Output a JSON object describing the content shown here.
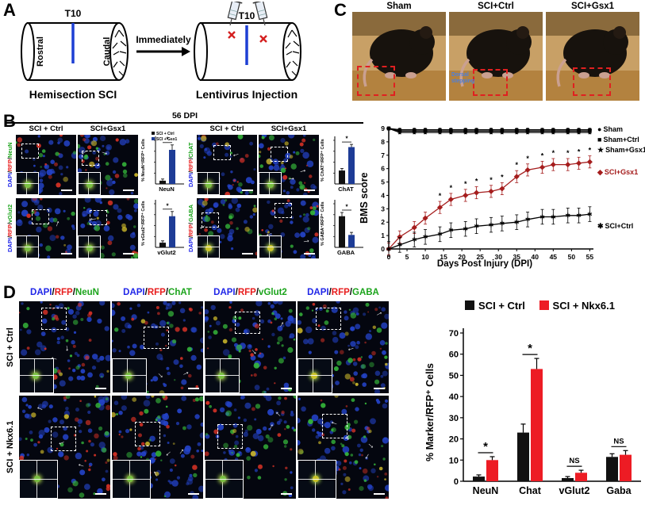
{
  "colors": {
    "dapi_blue": "#2026e8",
    "rfp_red": "#e81c1c",
    "marker_green": "#1ca41c",
    "sci_gsx1_line_red": "#a51d1d",
    "nkx_bar_red": "#ed1c24",
    "gsx1_bar_blue": "#1e3c96"
  },
  "panel_a": {
    "label": "A",
    "t10_left": "T10",
    "t10_right": "T10",
    "rostral": "Rostral",
    "caudal": "Caudal",
    "caption_left": "Hemisection SCI",
    "arrow_label": "Immediately",
    "caption_right": "Lentivirus Injection"
  },
  "panel_c": {
    "label": "C",
    "photo_titles": [
      "Sham",
      "SCI+Ctrl",
      "SCI+Gsx1"
    ],
    "dorsal_note": "Dorsal stepping"
  },
  "panel_b": {
    "label": "B",
    "dpi_header": "56 DPI",
    "sep": "/",
    "col_headers": [
      "SCI + Ctrl",
      "SCI+Gsx1",
      "SCI + Ctrl",
      "SCI+Gsx1"
    ],
    "stains": [
      {
        "dapi": "DAPI",
        "rfp": "RFP",
        "marker": "NeuN"
      },
      {
        "dapi": "DAPI",
        "rfp": "RFP",
        "marker": "ChAT"
      },
      {
        "dapi": "DAPI",
        "rfp": "RFP",
        "marker": "vGlut2"
      },
      {
        "dapi": "DAPI",
        "rfp": "RFP",
        "marker": "GABA"
      }
    ]
  },
  "panel_d": {
    "label": "D",
    "sep": "/",
    "col_headers": [
      {
        "dapi": "DAPI",
        "rfp": "RFP",
        "marker": "NeuN"
      },
      {
        "dapi": "DAPI",
        "rfp": "RFP",
        "marker": "ChAT"
      },
      {
        "dapi": "DAPI",
        "rfp": "RFP",
        "marker": "vGlut2"
      },
      {
        "dapi": "DAPI",
        "rfp": "RFP",
        "marker": "GABA"
      }
    ],
    "row_labels": [
      "SCI + Ctrl",
      "SCI + Nkx6.1"
    ]
  },
  "chart_data": [
    {
      "id": "bms",
      "type": "line",
      "xlabel": "Days Post Injury (DPI)",
      "ylabel": "BMS score",
      "xlim": [
        0,
        56
      ],
      "ylim": [
        0,
        9
      ],
      "xticks": [
        0,
        5,
        10,
        15,
        20,
        25,
        30,
        35,
        40,
        45,
        50,
        55
      ],
      "yticks": [
        0,
        1,
        2,
        3,
        4,
        5,
        6,
        7,
        8,
        9
      ],
      "x": [
        0,
        3,
        7,
        10,
        14,
        17,
        21,
        24,
        28,
        31,
        35,
        38,
        42,
        45,
        49,
        52,
        55
      ],
      "series": [
        {
          "name": "Sham",
          "glyph": "●",
          "marker": "circle",
          "color": "#000000",
          "err": 0.1,
          "values": [
            9,
            8.9,
            8.9,
            8.9,
            8.9,
            8.9,
            8.9,
            8.9,
            8.9,
            8.9,
            8.9,
            8.9,
            8.9,
            8.9,
            8.9,
            8.9,
            8.9
          ]
        },
        {
          "name": "Sham+Ctrl",
          "glyph": "■",
          "marker": "square",
          "color": "#000000",
          "err": 0.1,
          "values": [
            9,
            8.8,
            8.8,
            8.8,
            8.8,
            8.8,
            8.8,
            8.8,
            8.8,
            8.8,
            8.8,
            8.8,
            8.8,
            8.8,
            8.8,
            8.8,
            8.8
          ]
        },
        {
          "name": "Sham+Gsx1",
          "glyph": "★",
          "marker": "star",
          "color": "#000000",
          "err": 0.1,
          "values": [
            9,
            8.7,
            8.7,
            8.7,
            8.7,
            8.7,
            8.7,
            8.7,
            8.7,
            8.7,
            8.7,
            8.7,
            8.7,
            8.7,
            8.7,
            8.7,
            8.7
          ]
        },
        {
          "name": "SCI+Gsx1",
          "glyph": "◆",
          "marker": "diamond",
          "color": "#a51d1d",
          "err": 0.45,
          "values": [
            0,
            0.9,
            1.6,
            2.3,
            3.1,
            3.7,
            4.0,
            4.2,
            4.3,
            4.5,
            5.4,
            5.9,
            6.1,
            6.3,
            6.3,
            6.4,
            6.5
          ]
        },
        {
          "name": "SCI+Ctrl",
          "glyph": "✱",
          "marker": "asterisk",
          "color": "#000000",
          "err": 0.55,
          "values": [
            0,
            0.3,
            0.7,
            0.9,
            1.1,
            1.4,
            1.5,
            1.7,
            1.8,
            1.9,
            2.0,
            2.2,
            2.4,
            2.4,
            2.5,
            2.5,
            2.6
          ]
        }
      ],
      "sig_symbol": "*",
      "sig_from_index": 4
    },
    {
      "id": "neun_quant",
      "type": "bar",
      "xlabel": "NeuN",
      "ylabel": "% NeuN⁺/RFP⁺ Cells",
      "categories": [
        "SCI + Ctrl",
        "SCI + Gsx1"
      ],
      "values": [
        1.2,
        12.5
      ],
      "errors": [
        0.6,
        1.8
      ],
      "colors": [
        "#111111",
        "#1e3c96"
      ],
      "ylim": [
        0,
        16
      ],
      "sig": "*",
      "legend": [
        {
          "label": "SCI + Ctrl",
          "color": "#111111"
        },
        {
          "label": "SCI + Gsx1",
          "color": "#1e3c96"
        }
      ]
    },
    {
      "id": "chat_quant",
      "type": "bar",
      "xlabel": "ChAT",
      "ylabel": "% ChAT⁺/RFP⁺ Cells",
      "categories": [
        "SCI + Ctrl",
        "SCI + Gsx1"
      ],
      "values": [
        20,
        55
      ],
      "errors": [
        3,
        4
      ],
      "colors": [
        "#111111",
        "#1e3c96"
      ],
      "ylim": [
        0,
        65
      ],
      "sig": "*"
    },
    {
      "id": "vglut2_quant",
      "type": "bar",
      "xlabel": "vGlut2",
      "ylabel": "% vGlut2⁺/RFP⁺ Cells",
      "categories": [
        "SCI + Ctrl",
        "SCI + Gsx1"
      ],
      "values": [
        1.5,
        10
      ],
      "errors": [
        0.6,
        1.5
      ],
      "colors": [
        "#111111",
        "#1e3c96"
      ],
      "ylim": [
        0,
        14
      ],
      "sig": "*"
    },
    {
      "id": "gaba_quant",
      "type": "bar",
      "xlabel": "GABA",
      "ylabel": "% GABA⁺/RFP⁺ Cells",
      "categories": [
        "SCI + Ctrl",
        "SCI + Gsx1"
      ],
      "values": [
        10,
        4
      ],
      "errors": [
        1.2,
        0.8
      ],
      "colors": [
        "#111111",
        "#1e3c96"
      ],
      "ylim": [
        0,
        14
      ],
      "sig": "*"
    },
    {
      "id": "marker_quant",
      "type": "grouped_bar",
      "ylabel": "% Marker/RFP⁺ Cells",
      "categories": [
        "NeuN",
        "Chat",
        "vGlut2",
        "Gaba"
      ],
      "series": [
        {
          "name": "SCI + Ctrl",
          "color": "#111111",
          "values": [
            2.2,
            23,
            1.5,
            11.5
          ],
          "errors": [
            0.8,
            4,
            0.7,
            1.5
          ]
        },
        {
          "name": "SCI + Nkx6.1",
          "color": "#ed1c24",
          "values": [
            10,
            53,
            4,
            12.5
          ],
          "errors": [
            1.6,
            5,
            1.2,
            2
          ]
        }
      ],
      "sig": [
        "*",
        "*",
        "NS",
        "NS"
      ],
      "ylim": [
        0,
        70
      ],
      "yticks": [
        0,
        10,
        20,
        30,
        40,
        50,
        60,
        70
      ]
    }
  ]
}
